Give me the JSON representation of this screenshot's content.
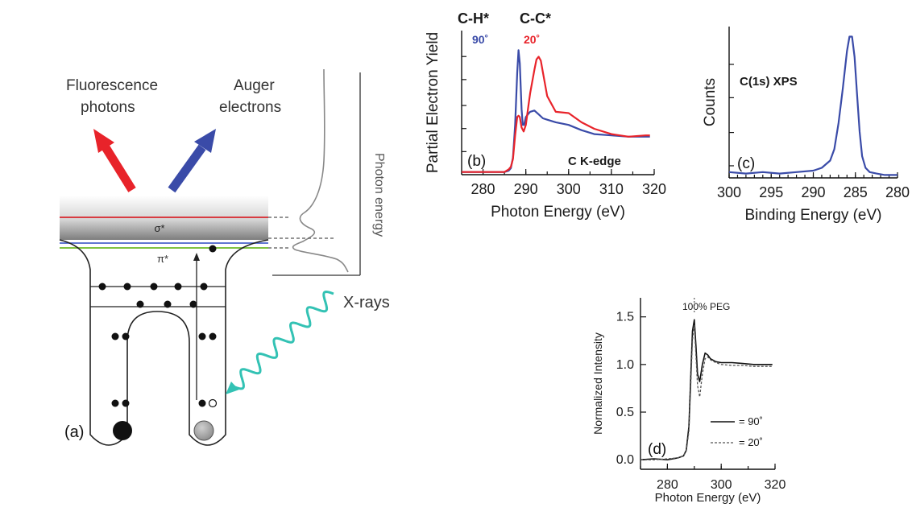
{
  "schematic": {
    "fluorescence_label_line1": "Fluorescence",
    "fluorescence_label_line2": "photons",
    "auger_label_line1": "Auger",
    "auger_label_line2": "electrons",
    "sigma_label": "σ*",
    "pi_label": "π*",
    "xrays_label": "X-rays",
    "photon_energy_axis_label": "Photon energy",
    "panel_label": "(a)",
    "colors": {
      "fluorescence_arrow": "#e8232a",
      "auger_arrow": "#3a4ba8",
      "sigma_line": "#d9262c",
      "pi_upper_line": "#4a63c9",
      "pi_lower_line": "#7fc241",
      "xray_wave": "#33c2b4"
    }
  },
  "chart_data": [
    {
      "type": "line",
      "panel_label": "(b)",
      "title": "",
      "annotations": [
        "C-H*",
        "C-C*",
        "90˚",
        "20˚",
        "C K-edge"
      ],
      "xlabel": "Photon Energy (eV)",
      "ylabel": "Partial Electron Yield",
      "xlim": [
        275,
        320
      ],
      "ylim": [
        0,
        1.1
      ],
      "xticks": [
        280,
        290,
        300,
        310,
        320
      ],
      "series": [
        {
          "name": "90˚",
          "color": "#3a4ba8",
          "x": [
            275,
            283,
            285,
            286,
            286.5,
            287,
            287.5,
            288,
            288.3,
            288.6,
            289,
            289.3,
            289.6,
            290,
            290.5,
            291,
            292,
            293,
            294,
            295,
            297,
            300,
            303,
            306,
            310,
            314,
            318,
            319
          ],
          "y": [
            0.02,
            0.02,
            0.02,
            0.03,
            0.05,
            0.13,
            0.38,
            0.78,
            0.95,
            0.85,
            0.5,
            0.38,
            0.38,
            0.44,
            0.46,
            0.48,
            0.49,
            0.46,
            0.43,
            0.42,
            0.4,
            0.38,
            0.34,
            0.31,
            0.3,
            0.29,
            0.29,
            0.29
          ]
        },
        {
          "name": "20˚",
          "color": "#e8232a",
          "x": [
            275,
            283,
            285,
            286,
            286.5,
            287,
            287.5,
            288,
            288.3,
            288.6,
            289,
            289.5,
            290,
            290.5,
            291,
            292,
            292.5,
            293,
            293.5,
            294,
            295,
            297,
            300,
            303,
            306,
            310,
            314,
            318,
            319
          ],
          "y": [
            0.02,
            0.02,
            0.02,
            0.04,
            0.06,
            0.12,
            0.3,
            0.44,
            0.45,
            0.44,
            0.36,
            0.33,
            0.38,
            0.5,
            0.62,
            0.8,
            0.88,
            0.9,
            0.87,
            0.78,
            0.6,
            0.48,
            0.47,
            0.4,
            0.35,
            0.31,
            0.29,
            0.3,
            0.3
          ]
        }
      ]
    },
    {
      "type": "line",
      "panel_label": "(c)",
      "title": "",
      "annotations": [
        "C(1s) XPS"
      ],
      "xlabel": "Binding Energy (eV)",
      "ylabel": "Counts",
      "xlim": [
        300,
        280
      ],
      "ylim": [
        0,
        1.05
      ],
      "x_reversed": true,
      "xticks": [
        300,
        295,
        290,
        285,
        280
      ],
      "series": [
        {
          "color": "#3a4ba8",
          "x": [
            300,
            298,
            296,
            294,
            292,
            290,
            289,
            288,
            287.5,
            287,
            286.5,
            286,
            285.7,
            285.4,
            285.1,
            284.8,
            284.5,
            284.2,
            283.8,
            283.3,
            282.5,
            281.5,
            280
          ],
          "y": [
            0.04,
            0.03,
            0.04,
            0.03,
            0.04,
            0.05,
            0.07,
            0.12,
            0.2,
            0.38,
            0.62,
            0.88,
            0.98,
            0.98,
            0.84,
            0.58,
            0.32,
            0.15,
            0.07,
            0.04,
            0.03,
            0.02,
            0.02
          ]
        }
      ]
    },
    {
      "type": "line",
      "panel_label": "(d)",
      "title": "",
      "annotations": [
        "100% PEG"
      ],
      "xlabel": "Photon Energy (eV)",
      "ylabel": "Normalized Intensity",
      "xlim": [
        270,
        320
      ],
      "ylim": [
        -0.1,
        1.7
      ],
      "xticks": [
        280,
        300,
        320
      ],
      "yticks": [
        0.0,
        0.5,
        1.0,
        1.5
      ],
      "legend": [
        "= 90˚",
        "= 20˚"
      ],
      "legend_placement": "bottom-right",
      "series": [
        {
          "name": "= 90˚",
          "style": "solid",
          "color": "#111111",
          "x": [
            270,
            275,
            280,
            284,
            286,
            287,
            288,
            288.7,
            289.3,
            290,
            290.6,
            291.2,
            292,
            293,
            294,
            295,
            296,
            298,
            300,
            304,
            308,
            312,
            316,
            319
          ],
          "y": [
            0.0,
            0.01,
            0.0,
            0.02,
            0.04,
            0.1,
            0.35,
            0.9,
            1.35,
            1.47,
            1.2,
            0.9,
            0.82,
            1.0,
            1.12,
            1.1,
            1.06,
            1.03,
            1.02,
            1.02,
            1.01,
            1.0,
            1.0,
            1.0
          ]
        },
        {
          "name": "= 20˚",
          "style": "dashed",
          "color": "#555555",
          "x": [
            270,
            275,
            280,
            284,
            286,
            287,
            288,
            288.7,
            289.3,
            290,
            290.6,
            291.2,
            292,
            293,
            294,
            295,
            296,
            298,
            300,
            304,
            308,
            312,
            316,
            319
          ],
          "y": [
            0.0,
            0.0,
            0.01,
            0.02,
            0.04,
            0.09,
            0.3,
            0.8,
            1.25,
            1.42,
            1.1,
            0.78,
            0.66,
            0.9,
            1.06,
            1.08,
            1.05,
            1.02,
            1.0,
            0.99,
            0.99,
            0.98,
            0.98,
            0.98
          ]
        }
      ]
    }
  ]
}
